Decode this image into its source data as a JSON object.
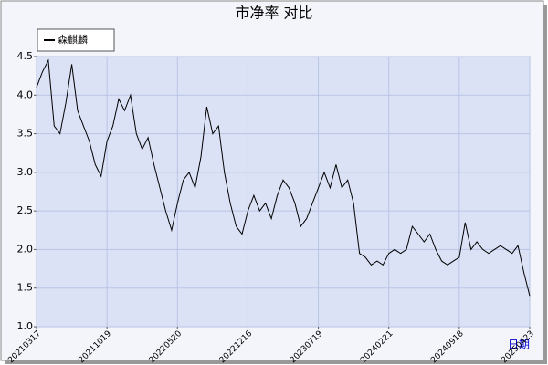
{
  "chart_data": {
    "type": "line",
    "title": "市净率  对比",
    "xlabel": "日期",
    "categories": [
      "20210317",
      null,
      null,
      null,
      null,
      null,
      null,
      null,
      null,
      null,
      null,
      null,
      "20211019",
      null,
      null,
      null,
      null,
      null,
      null,
      null,
      null,
      null,
      null,
      null,
      "20220520",
      null,
      null,
      null,
      null,
      null,
      null,
      null,
      null,
      null,
      null,
      null,
      "20221216",
      null,
      null,
      null,
      null,
      null,
      null,
      null,
      null,
      null,
      null,
      null,
      "20230719",
      null,
      null,
      null,
      null,
      null,
      null,
      null,
      null,
      null,
      null,
      null,
      "20240221",
      null,
      null,
      null,
      null,
      null,
      null,
      null,
      null,
      null,
      null,
      null,
      "20240918",
      null,
      null,
      null,
      null,
      null,
      null,
      null,
      null,
      null,
      null,
      null,
      "20250423"
    ],
    "series": [
      {
        "name": "森麒麟",
        "color": "#000000",
        "values": [
          4.1,
          4.3,
          4.45,
          3.6,
          3.5,
          3.9,
          4.4,
          3.8,
          3.6,
          3.4,
          3.1,
          2.95,
          3.4,
          3.6,
          3.95,
          3.8,
          4.0,
          3.5,
          3.3,
          3.45,
          3.1,
          2.8,
          2.5,
          2.25,
          2.6,
          2.9,
          3.0,
          2.8,
          3.2,
          3.85,
          3.5,
          3.6,
          3.0,
          2.6,
          2.3,
          2.2,
          2.5,
          2.7,
          2.5,
          2.6,
          2.4,
          2.7,
          2.9,
          2.8,
          2.6,
          2.3,
          2.4,
          2.6,
          2.8,
          3.0,
          2.8,
          3.1,
          2.8,
          2.9,
          2.6,
          1.95,
          1.9,
          1.8,
          1.85,
          1.8,
          1.95,
          2.0,
          1.95,
          2.0,
          2.3,
          2.2,
          2.1,
          2.2,
          2.0,
          1.85,
          1.8,
          1.85,
          1.9,
          2.35,
          2.0,
          2.1,
          2.0,
          1.95,
          2.0,
          2.05,
          2.0,
          1.95,
          2.05,
          1.7,
          1.4
        ]
      }
    ],
    "ylim": [
      1.0,
      4.5
    ],
    "yticks": [
      {
        "value": 1.0,
        "label": "1.0"
      },
      1.5,
      {
        "value": 2.0,
        "label": "2.0"
      },
      2.5,
      {
        "value": 3.0,
        "label": "3.0"
      },
      3.5,
      {
        "value": 4.0,
        "label": "4.0"
      },
      4.5
    ],
    "grid": true,
    "legend": "top-left"
  }
}
